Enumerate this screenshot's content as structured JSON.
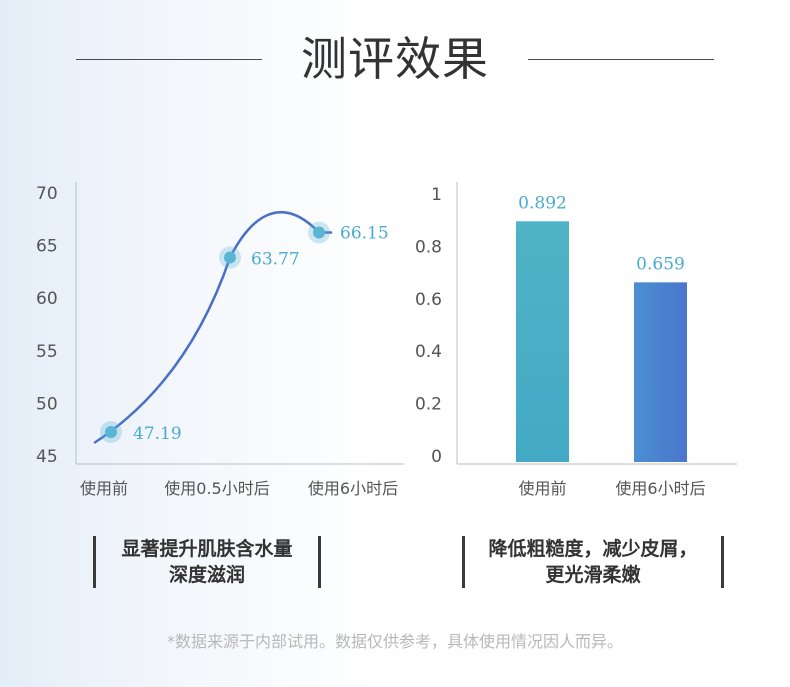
{
  "header": {
    "title": "测评效果"
  },
  "colors": {
    "line": "#4a6fc8",
    "point": "#5ab4d4",
    "label": "#4aaad0",
    "bar1": "#4fb3c7",
    "bar2": "#4a82cf",
    "axis": "#bdbdbd",
    "tick_text": "#555555"
  },
  "chart_data": [
    {
      "type": "line",
      "categories": [
        "使用前",
        "使用0.5小时后",
        "使用6小时后"
      ],
      "values": [
        47.19,
        63.77,
        66.15
      ],
      "value_labels": [
        "47.19",
        "63.77",
        "66.15"
      ],
      "ylim": [
        45,
        70
      ],
      "yticks": [
        "70",
        "65",
        "60",
        "55",
        "50",
        "45"
      ],
      "grid": false
    },
    {
      "type": "bar",
      "categories": [
        "使用前",
        "使用6小时后"
      ],
      "values": [
        0.892,
        0.659
      ],
      "value_labels": [
        "0.892",
        "0.659"
      ],
      "ylim": [
        0,
        1
      ],
      "yticks": [
        "1",
        "0.8",
        "0.6",
        "0.4",
        "0.2",
        "0"
      ],
      "grid": false
    }
  ],
  "captions": {
    "left": [
      "显著提升肌肤含水量",
      "深度滋润"
    ],
    "right": [
      "降低粗糙度，减少皮屑，",
      "更光滑柔嫩"
    ]
  },
  "footnote": "*数据来源于内部试用。数据仅供参考，具体使用情况因人而异。"
}
